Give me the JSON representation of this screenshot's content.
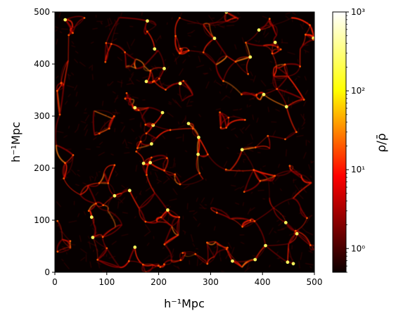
{
  "chart_data": {
    "type": "heatmap",
    "title": "",
    "xlabel": "h⁻¹Mpc",
    "ylabel": "h⁻¹Mpc",
    "xlim": [
      0,
      500
    ],
    "ylim": [
      0,
      500
    ],
    "xticks": [
      "0",
      "100",
      "200",
      "300",
      "400",
      "500"
    ],
    "yticks": [
      "0",
      "100",
      "200",
      "300",
      "400",
      "500"
    ],
    "colormap": "hot",
    "colorbar": {
      "label": "ρ/ρ̄",
      "scale": "log",
      "range": [
        0.5,
        1000
      ],
      "ticks": [
        "10⁰",
        "10¹",
        "10²",
        "10³"
      ]
    },
    "description_of_content": null
  },
  "colors": {
    "background": "#000000",
    "filament_low": "#8b0000",
    "filament_mid": "#ff2000",
    "filament_high": "#ffff60"
  }
}
